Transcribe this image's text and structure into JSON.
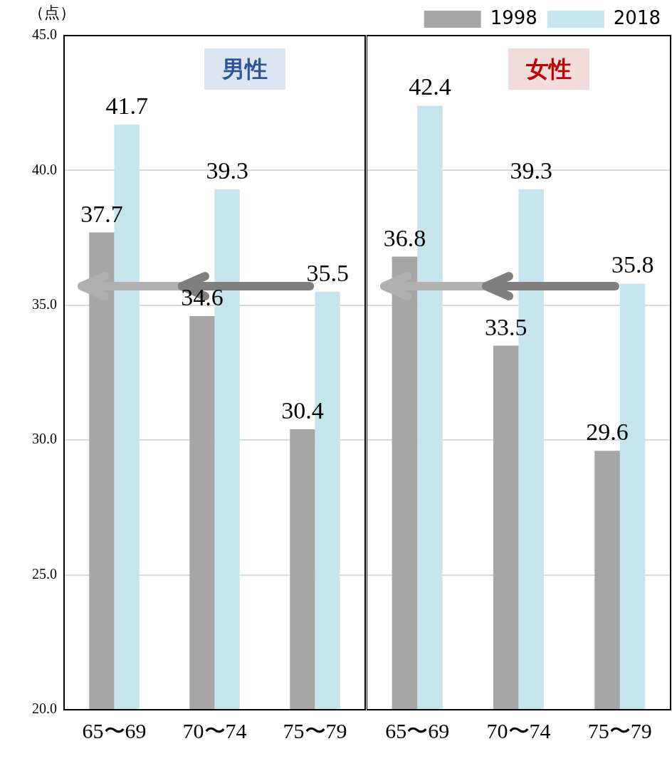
{
  "chart_data": [
    {
      "type": "bar",
      "title": "男性",
      "ylabel": "（点）",
      "categories": [
        "65〜69",
        "70〜74",
        "75〜79"
      ],
      "series": [
        {
          "color": "#a6a6a6",
          "values": [
            37.7,
            34.6,
            30.4
          ]
        },
        {
          "color": "#c6e4eb",
          "values": [
            41.7,
            39.3,
            35.5
          ]
        }
      ],
      "ylim": [
        20,
        45
      ],
      "yticks": [
        {
          "value": 20,
          "label": "20.0"
        },
        {
          "value": 25,
          "label": "25.0"
        },
        {
          "value": 30,
          "label": "30.0"
        },
        {
          "value": 35,
          "label": "35.0"
        },
        {
          "value": 40,
          "label": "40.0"
        },
        {
          "value": 45,
          "label": "45.0"
        }
      ],
      "grid": "y",
      "data_labels": true
    },
    {
      "type": "bar",
      "title": "女性",
      "categories": [
        "65〜69",
        "70〜74",
        "75〜79"
      ],
      "series": [
        {
          "name": "1998",
          "color": "#a6a6a6",
          "values": [
            36.8,
            33.5,
            29.6
          ]
        },
        {
          "name": "2018",
          "color": "#c6e4eb",
          "values": [
            42.4,
            39.3,
            35.8
          ]
        }
      ],
      "ylim": [
        20,
        45
      ],
      "yticks": [
        20,
        25,
        30,
        35,
        40,
        45
      ],
      "grid": "y",
      "legend": "top right",
      "data_labels": true,
      "tick_labels": "x"
    }
  ]
}
